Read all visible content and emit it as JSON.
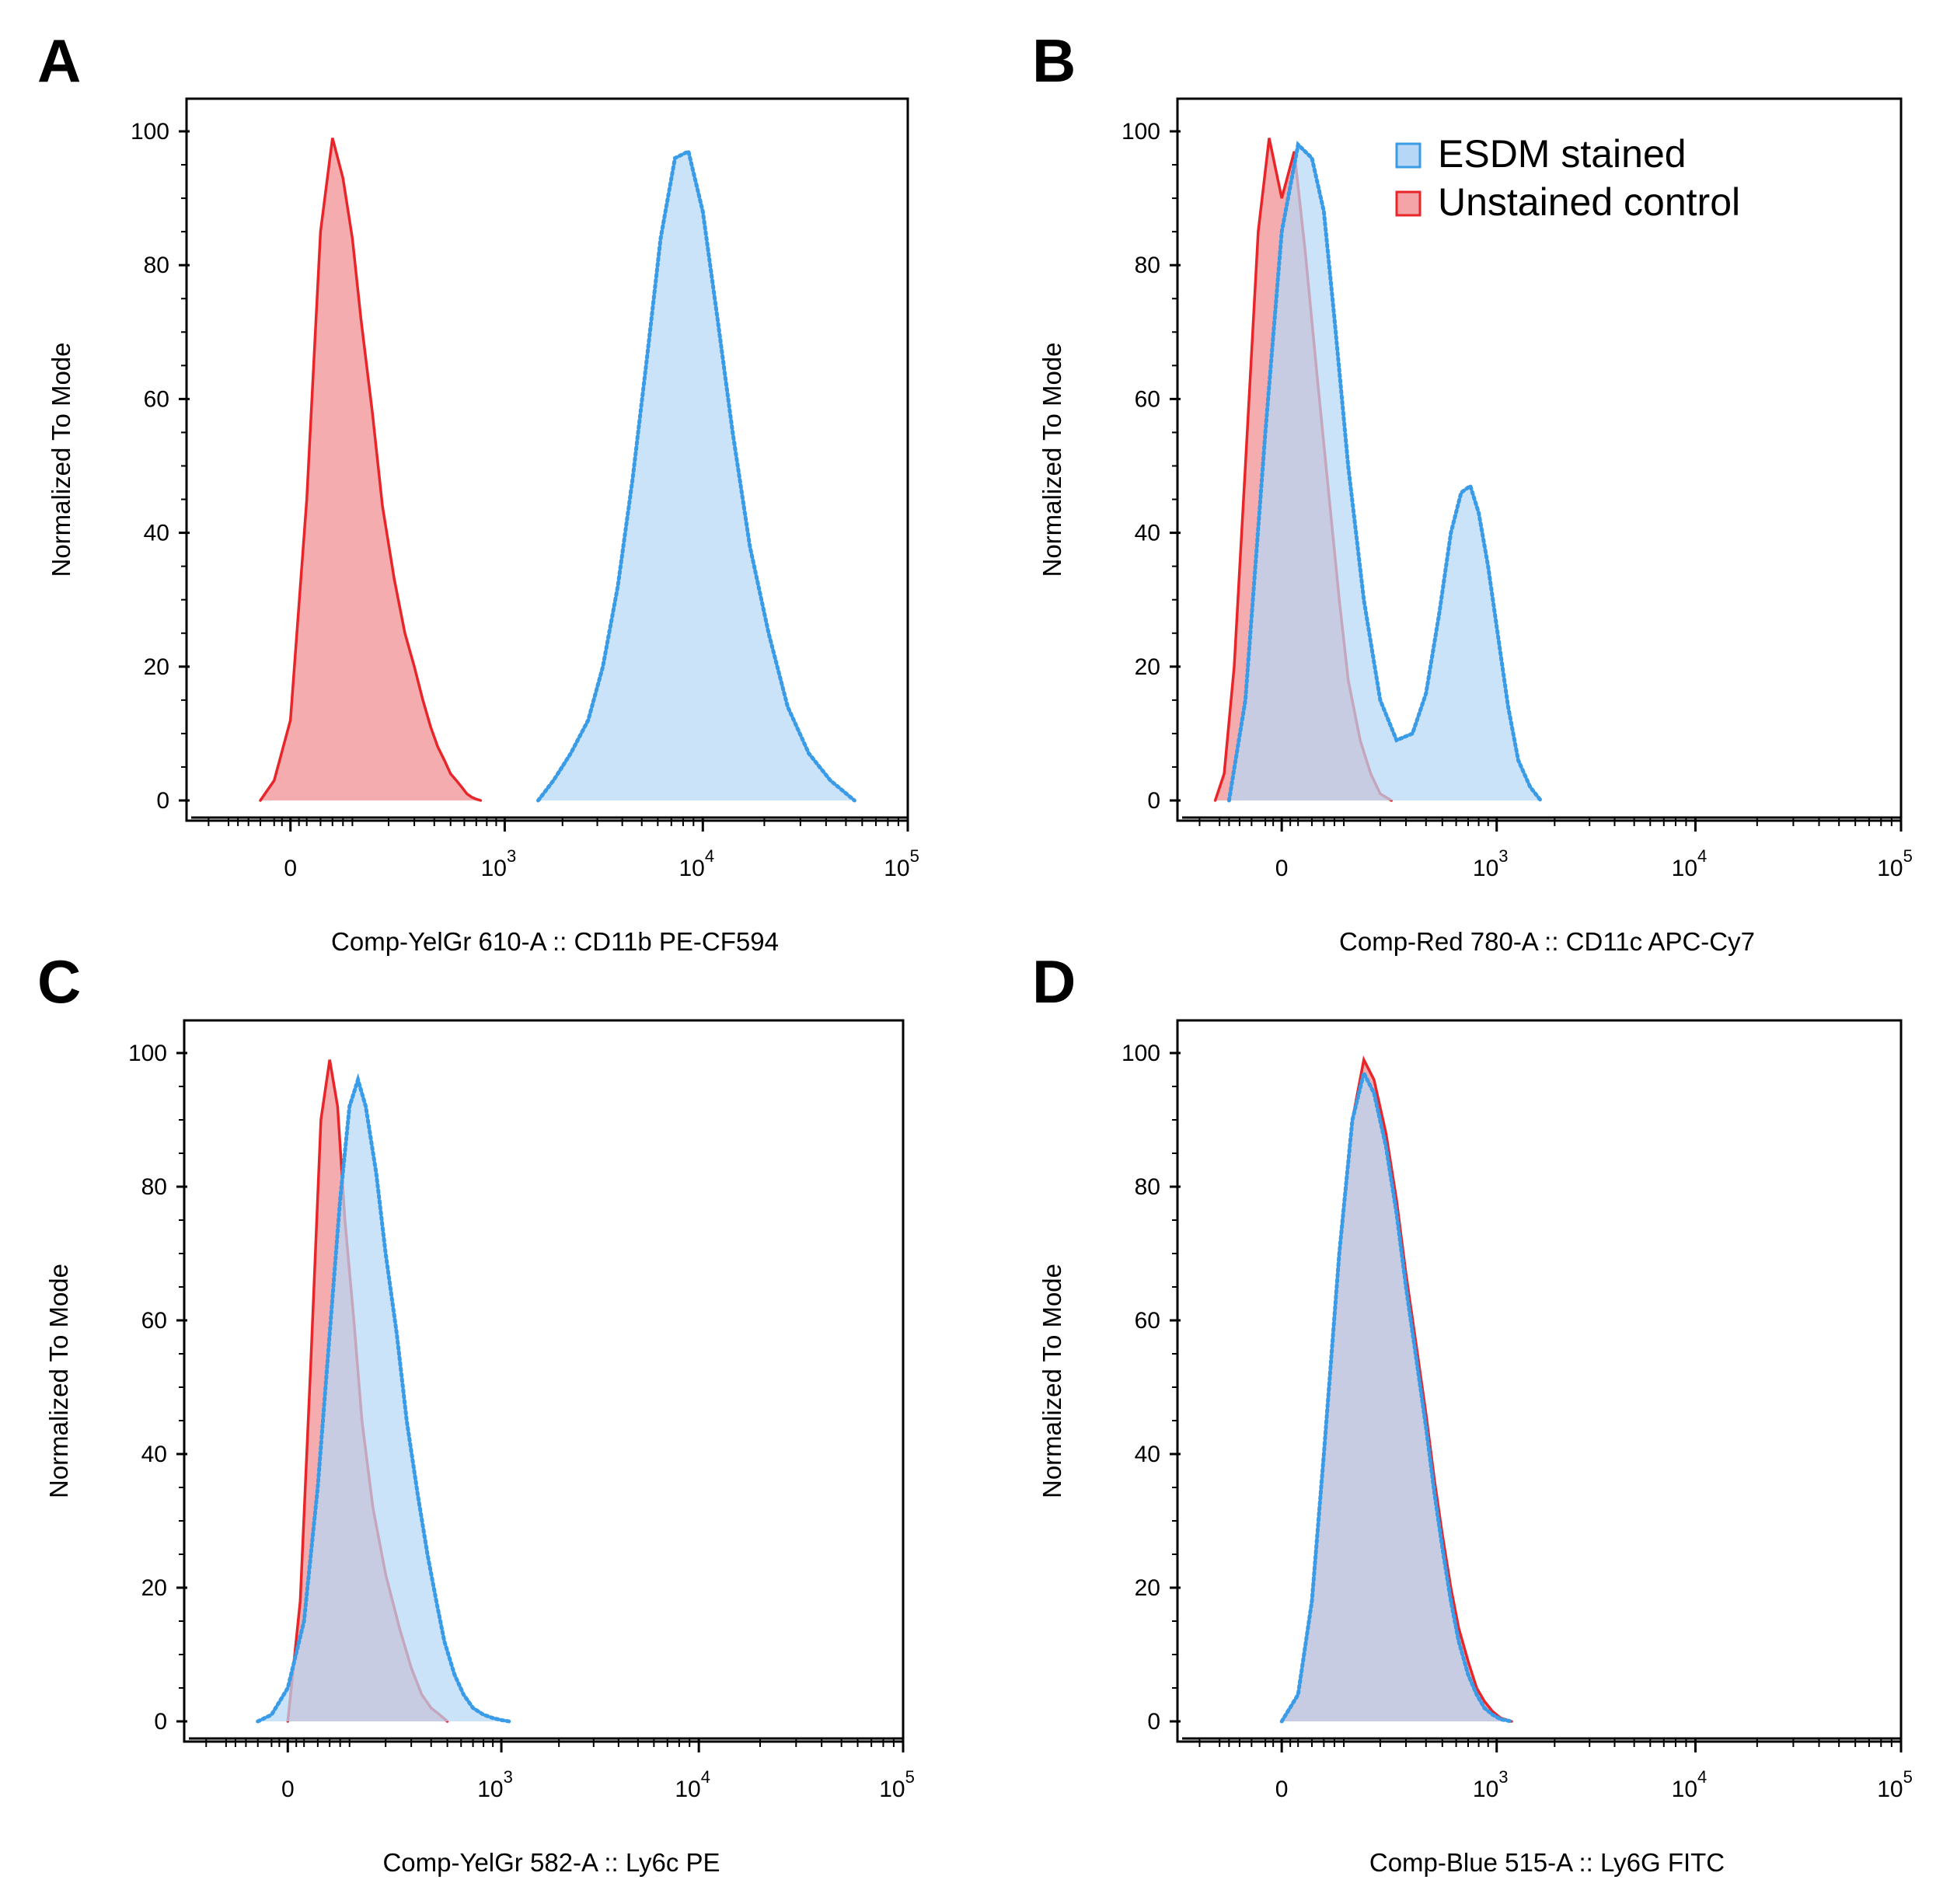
{
  "chart_data": [
    {
      "type": "area",
      "panel": "A",
      "xlabel": "Comp-YelGr 610-A :: CD11b PE-CF594",
      "ylabel": "Normalized To Mode",
      "x_scale": "biexponential",
      "yticks": [
        "0",
        "20",
        "40",
        "60",
        "80",
        "100"
      ],
      "xticks": [
        {
          "base": "0",
          "exp": ""
        },
        {
          "base": "10",
          "exp": "3"
        },
        {
          "base": "10",
          "exp": "4"
        },
        {
          "base": "10",
          "exp": "5"
        }
      ],
      "ylim": [
        0,
        105
      ],
      "legend": null,
      "series": [
        {
          "name": "Unstained control",
          "color": "#e8262a",
          "fill": "#f4a3a6",
          "style": "solid",
          "x": [
            -40,
            -20,
            0,
            20,
            40,
            60,
            80,
            100,
            120,
            150,
            180,
            220,
            260,
            300,
            340,
            380,
            420,
            460,
            500,
            540,
            580,
            620,
            660,
            700,
            740
          ],
          "y": [
            0,
            3,
            12,
            45,
            85,
            99,
            93,
            84,
            72,
            58,
            44,
            33,
            25,
            20,
            15,
            11,
            8,
            6,
            4,
            3,
            2,
            1,
            0.5,
            0.2,
            0
          ]
        },
        {
          "name": "ESDM stained",
          "color": "#3a9be6",
          "fill": "#b6d8f6",
          "style": "dotted",
          "x": [
            1500,
            1800,
            2200,
            2700,
            3200,
            3800,
            4500,
            5300,
            6200,
            7300,
            8500,
            10000,
            11800,
            14000,
            17000,
            21000,
            26000,
            33000,
            42000,
            55000
          ],
          "y": [
            0,
            3,
            7,
            12,
            20,
            32,
            48,
            66,
            84,
            96,
            97,
            88,
            72,
            55,
            38,
            25,
            14,
            7,
            3,
            0
          ]
        }
      ]
    },
    {
      "type": "area",
      "panel": "B",
      "xlabel": "Comp-Red 780-A :: CD11c APC-Cy7",
      "ylabel": "Normalized To Mode",
      "x_scale": "biexponential",
      "yticks": [
        "0",
        "20",
        "40",
        "60",
        "80",
        "100"
      ],
      "xticks": [
        {
          "base": "0",
          "exp": ""
        },
        {
          "base": "10",
          "exp": "3"
        },
        {
          "base": "10",
          "exp": "4"
        },
        {
          "base": "10",
          "exp": "5"
        }
      ],
      "ylim": [
        0,
        105
      ],
      "legend": {
        "position": "top-right",
        "entries": [
          "ESDM stained",
          "Unstained control"
        ]
      },
      "series": [
        {
          "name": "Unstained control",
          "color": "#e8262a",
          "fill": "#f4a3a6",
          "style": "solid",
          "x": [
            -110,
            -90,
            -70,
            -50,
            -30,
            -15,
            0,
            15,
            30,
            50,
            70,
            90,
            110,
            140,
            170,
            200,
            240
          ],
          "y": [
            0,
            4,
            20,
            50,
            85,
            99,
            90,
            97,
            82,
            62,
            45,
            30,
            18,
            9,
            4,
            1,
            0
          ]
        },
        {
          "name": "ESDM stained",
          "color": "#3a9be6",
          "fill": "#b6d8f6",
          "style": "dotted",
          "x": [
            -80,
            -50,
            -20,
            0,
            20,
            40,
            60,
            80,
            110,
            150,
            200,
            260,
            330,
            400,
            480,
            560,
            640,
            720,
            800,
            900,
            1000,
            1150,
            1300,
            1500,
            1700
          ],
          "y": [
            0,
            15,
            55,
            85,
            98,
            96,
            88,
            72,
            50,
            30,
            15,
            9,
            10,
            16,
            28,
            40,
            46,
            47,
            43,
            35,
            26,
            14,
            6,
            2,
            0
          ]
        }
      ]
    },
    {
      "type": "area",
      "panel": "C",
      "xlabel": "Comp-YelGr 582-A :: Ly6c PE",
      "ylabel": "Normalized To Mode",
      "x_scale": "biexponential",
      "yticks": [
        "0",
        "20",
        "40",
        "60",
        "80",
        "100"
      ],
      "xticks": [
        {
          "base": "0",
          "exp": ""
        },
        {
          "base": "10",
          "exp": "3"
        },
        {
          "base": "10",
          "exp": "4"
        },
        {
          "base": "10",
          "exp": "5"
        }
      ],
      "ylim": [
        0,
        105
      ],
      "legend": null,
      "series": [
        {
          "name": "Unstained control",
          "color": "#e8262a",
          "fill": "#f4a3a6",
          "style": "solid",
          "x": [
            0,
            15,
            30,
            45,
            60,
            75,
            90,
            110,
            130,
            160,
            200,
            250,
            300,
            350,
            400,
            450,
            500
          ],
          "y": [
            0,
            18,
            55,
            90,
            99,
            92,
            75,
            60,
            45,
            32,
            22,
            14,
            8,
            4,
            2,
            1,
            0
          ]
        },
        {
          "name": "ESDM stained",
          "color": "#3a9be6",
          "fill": "#b6d8f6",
          "style": "dotted",
          "x": [
            -40,
            -20,
            0,
            20,
            40,
            60,
            80,
            100,
            120,
            140,
            170,
            200,
            240,
            280,
            330,
            380,
            430,
            480,
            550,
            620,
            700,
            800,
            900,
            1000,
            1100
          ],
          "y": [
            0,
            1,
            5,
            15,
            35,
            58,
            78,
            92,
            96,
            92,
            82,
            70,
            58,
            45,
            34,
            25,
            18,
            12,
            7,
            4,
            2,
            1,
            0.5,
            0.2,
            0
          ]
        }
      ]
    },
    {
      "type": "area",
      "panel": "D",
      "xlabel": "Comp-Blue 515-A :: Ly6G FITC",
      "ylabel": "Normalized To Mode",
      "x_scale": "biexponential",
      "yticks": [
        "0",
        "20",
        "40",
        "60",
        "80",
        "100"
      ],
      "xticks": [
        {
          "base": "0",
          "exp": ""
        },
        {
          "base": "10",
          "exp": "3"
        },
        {
          "base": "10",
          "exp": "4"
        },
        {
          "base": "10",
          "exp": "5"
        }
      ],
      "ylim": [
        0,
        105
      ],
      "legend": null,
      "series": [
        {
          "name": "Unstained control",
          "color": "#e8262a",
          "fill": "#f4a3a6",
          "style": "solid",
          "x": [
            0,
            20,
            40,
            60,
            90,
            120,
            150,
            180,
            220,
            260,
            300,
            350,
            400,
            450,
            500,
            560,
            620,
            700,
            780,
            860,
            950,
            1050,
            1200
          ],
          "y": [
            0,
            4,
            18,
            40,
            70,
            90,
            99,
            96,
            88,
            78,
            67,
            56,
            46,
            36,
            28,
            20,
            14,
            9,
            5,
            3,
            1.5,
            0.5,
            0
          ]
        },
        {
          "name": "ESDM stained",
          "color": "#3a9be6",
          "fill": "#b6d8f6",
          "style": "dotted",
          "x": [
            0,
            20,
            40,
            60,
            90,
            120,
            150,
            180,
            220,
            260,
            300,
            350,
            400,
            450,
            500,
            560,
            620,
            700,
            780,
            860,
            950,
            1050,
            1200
          ],
          "y": [
            0,
            4,
            18,
            40,
            70,
            90,
            97,
            94,
            86,
            76,
            65,
            54,
            44,
            34,
            26,
            18,
            12,
            7,
            4,
            2,
            1,
            0.3,
            0
          ]
        }
      ]
    }
  ]
}
